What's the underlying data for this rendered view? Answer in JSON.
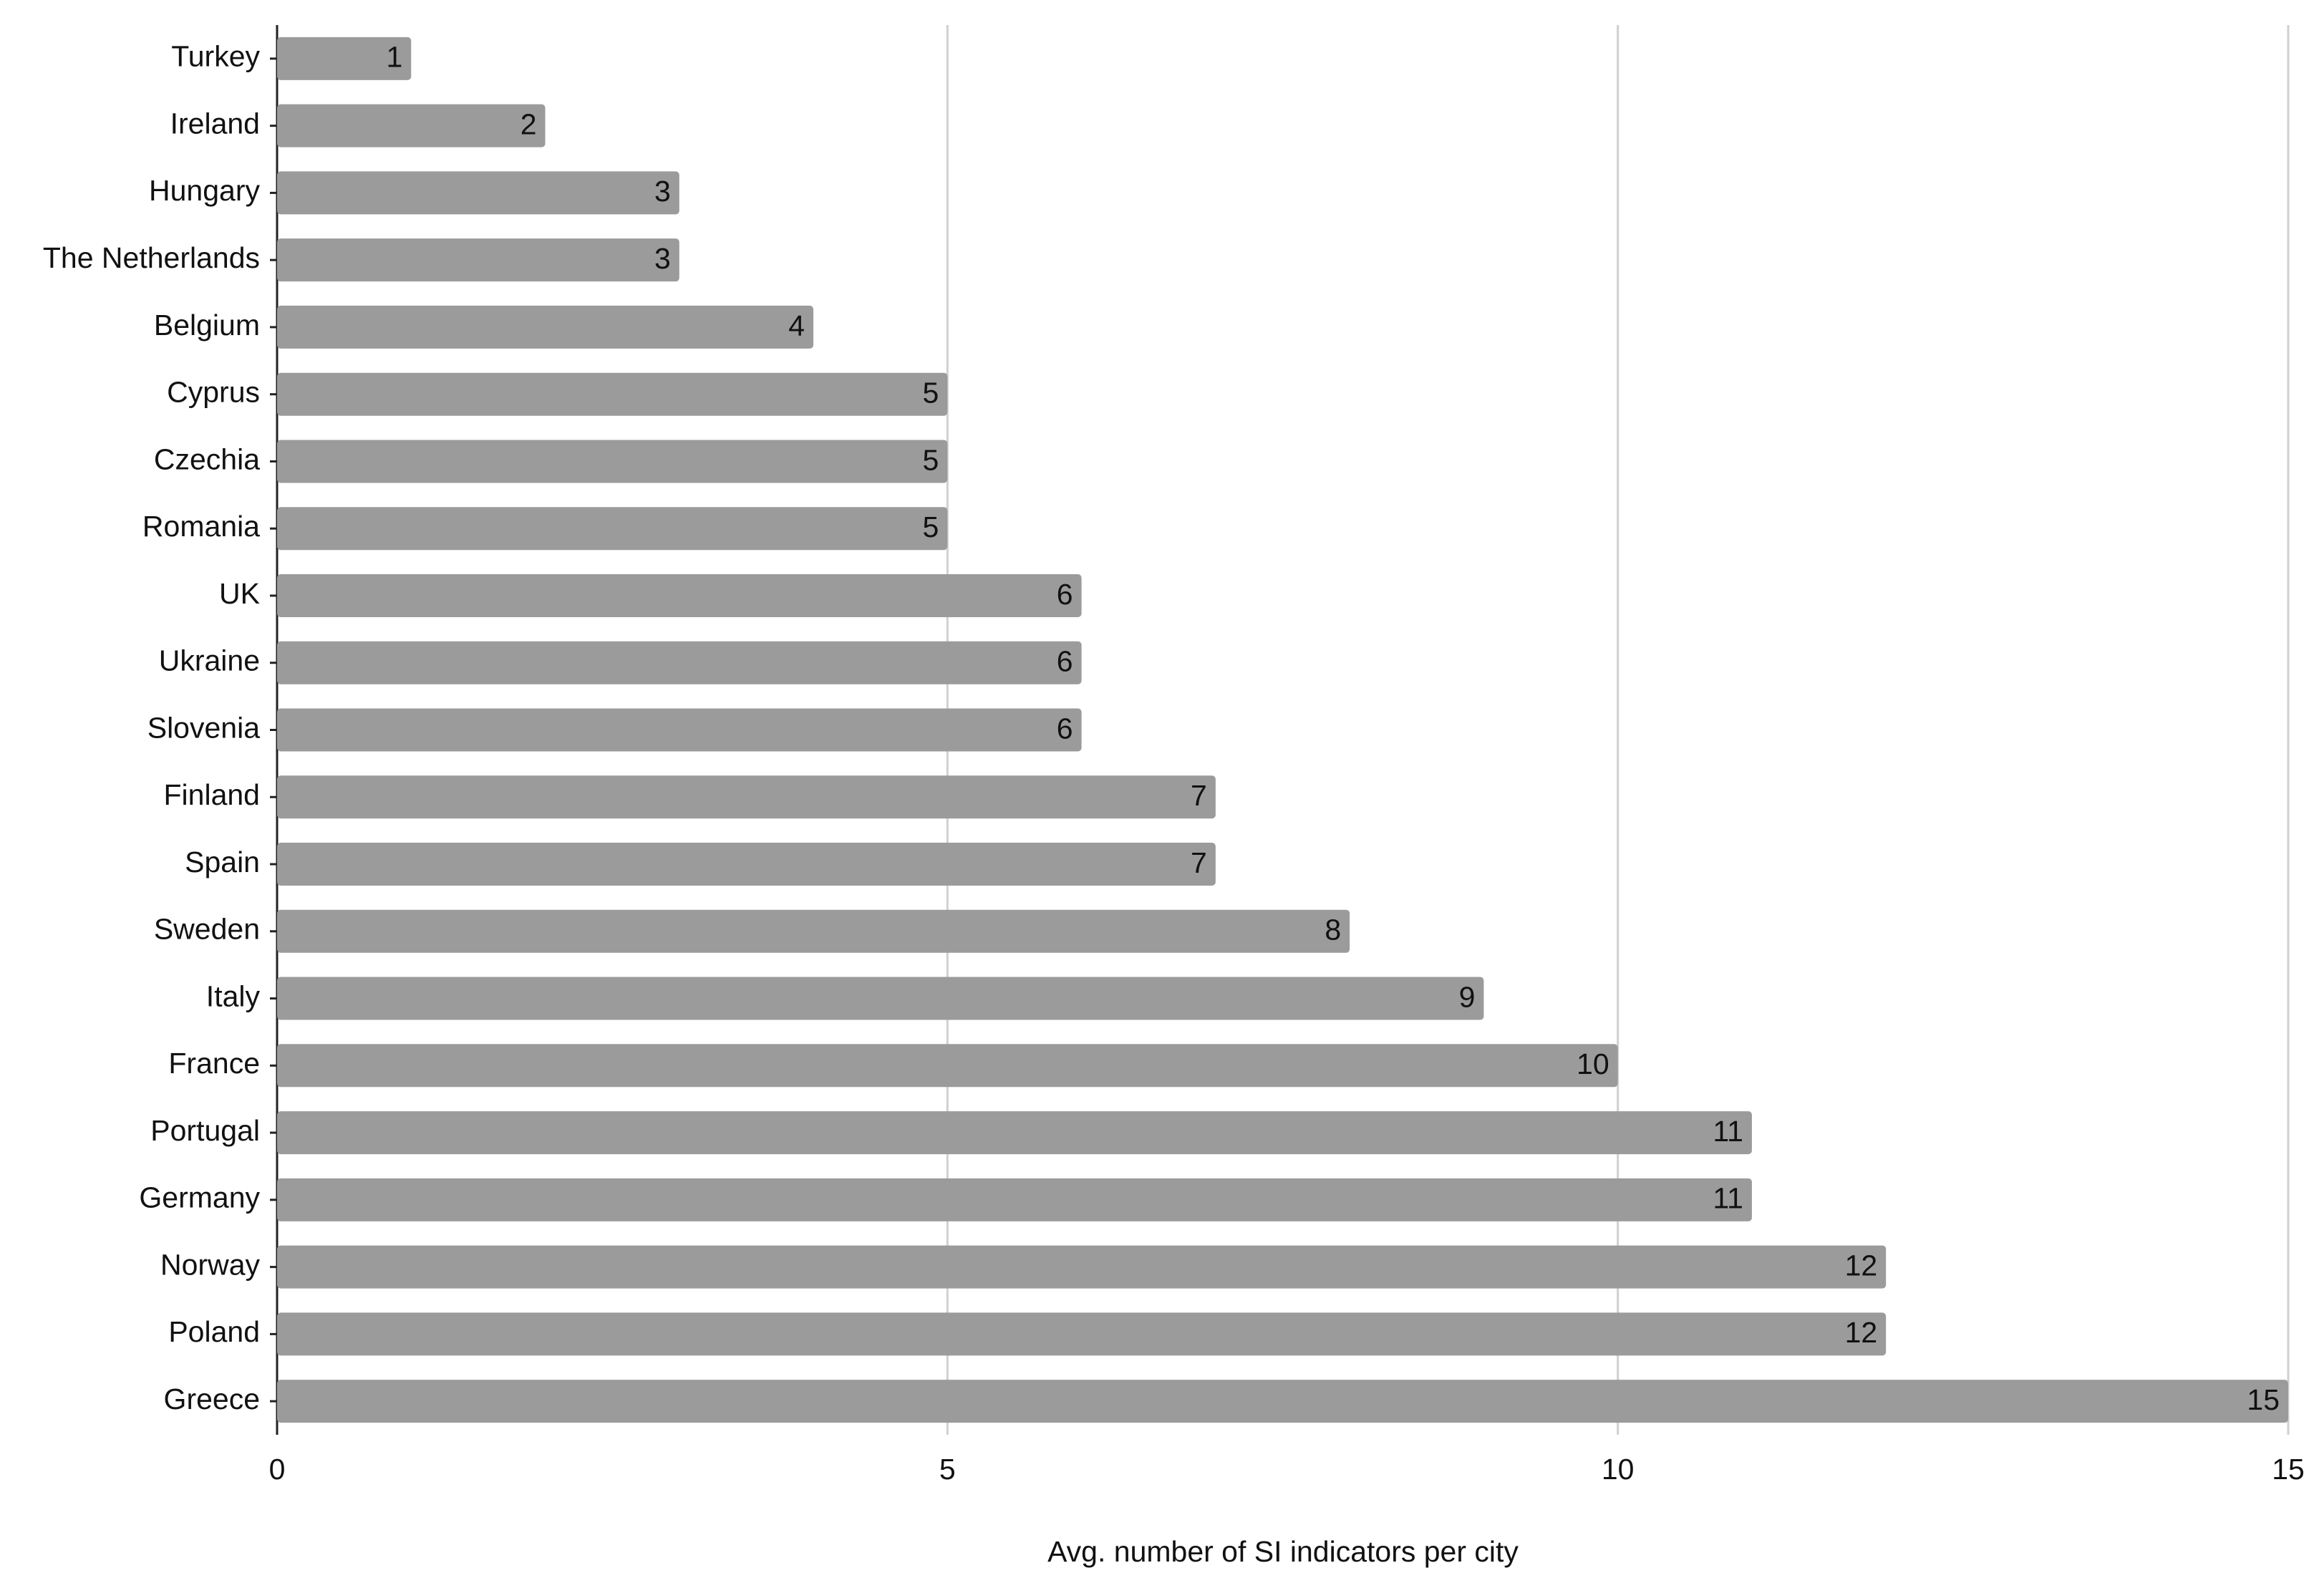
{
  "chart_data": {
    "type": "hbar",
    "x_label": "Avg. number of SI indicators per city",
    "categories": [
      "Turkey",
      "Ireland",
      "Hungary",
      "The Netherlands",
      "Belgium",
      "Cyprus",
      "Czechia",
      "Romania",
      "UK",
      "Ukraine",
      "Slovenia",
      "Finland",
      "Spain",
      "Sweden",
      "Italy",
      "France",
      "Portugal",
      "Germany",
      "Norway",
      "Poland",
      "Greece"
    ],
    "values": [
      1,
      2,
      3,
      3,
      4,
      5,
      5,
      5,
      6,
      6,
      6,
      7,
      7,
      8,
      9,
      10,
      11,
      11,
      12,
      12,
      15
    ],
    "color": "#9b9b9b",
    "xlim": [
      0,
      15
    ],
    "xticks": [
      0,
      5,
      10,
      15
    ],
    "grid": true
  }
}
